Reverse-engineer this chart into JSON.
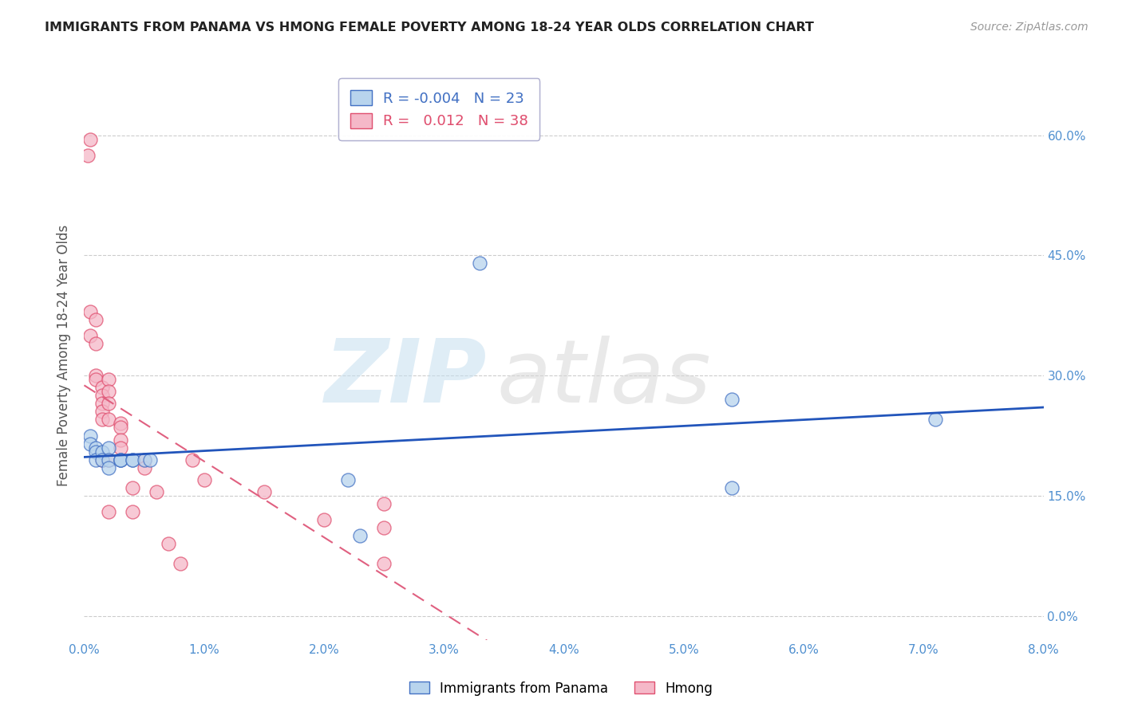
{
  "title": "IMMIGRANTS FROM PANAMA VS HMONG FEMALE POVERTY AMONG 18-24 YEAR OLDS CORRELATION CHART",
  "source": "Source: ZipAtlas.com",
  "ylabel": "Female Poverty Among 18-24 Year Olds",
  "xlim": [
    0.0,
    0.08
  ],
  "ylim": [
    -0.03,
    0.68
  ],
  "xticks": [
    0.0,
    0.01,
    0.02,
    0.03,
    0.04,
    0.05,
    0.06,
    0.07,
    0.08
  ],
  "xtick_labels": [
    "0.0%",
    "1.0%",
    "2.0%",
    "3.0%",
    "4.0%",
    "5.0%",
    "6.0%",
    "7.0%",
    "8.0%"
  ],
  "yticks": [
    0.0,
    0.15,
    0.3,
    0.45,
    0.6
  ],
  "ytick_labels": [
    "0.0%",
    "15.0%",
    "30.0%",
    "45.0%",
    "60.0%"
  ],
  "panama_face_color": "#b8d4ed",
  "panama_edge_color": "#4472c4",
  "hmong_face_color": "#f5b8c8",
  "hmong_edge_color": "#e05070",
  "panama_line_color": "#2255bb",
  "hmong_line_color": "#e06080",
  "legend_panama_R": "-0.004",
  "legend_panama_N": "23",
  "legend_hmong_R": "0.012",
  "legend_hmong_N": "38",
  "panama_x": [
    0.0005,
    0.0005,
    0.001,
    0.001,
    0.001,
    0.0015,
    0.0015,
    0.002,
    0.002,
    0.002,
    0.003,
    0.003,
    0.003,
    0.004,
    0.004,
    0.005,
    0.0055,
    0.022,
    0.033,
    0.054,
    0.054,
    0.071,
    0.023
  ],
  "panama_y": [
    0.225,
    0.215,
    0.21,
    0.205,
    0.195,
    0.205,
    0.195,
    0.21,
    0.195,
    0.185,
    0.195,
    0.195,
    0.195,
    0.195,
    0.195,
    0.195,
    0.195,
    0.17,
    0.44,
    0.27,
    0.16,
    0.245,
    0.1
  ],
  "hmong_x": [
    0.0003,
    0.0005,
    0.0005,
    0.0005,
    0.001,
    0.001,
    0.001,
    0.001,
    0.0015,
    0.0015,
    0.0015,
    0.0015,
    0.0015,
    0.0015,
    0.002,
    0.002,
    0.002,
    0.002,
    0.002,
    0.002,
    0.003,
    0.003,
    0.003,
    0.003,
    0.004,
    0.004,
    0.005,
    0.005,
    0.006,
    0.007,
    0.008,
    0.009,
    0.01,
    0.015,
    0.02,
    0.025,
    0.025,
    0.025
  ],
  "hmong_y": [
    0.575,
    0.595,
    0.38,
    0.35,
    0.34,
    0.3,
    0.295,
    0.37,
    0.285,
    0.275,
    0.265,
    0.255,
    0.245,
    0.195,
    0.295,
    0.28,
    0.265,
    0.245,
    0.195,
    0.13,
    0.24,
    0.235,
    0.22,
    0.21,
    0.16,
    0.13,
    0.195,
    0.185,
    0.155,
    0.09,
    0.065,
    0.195,
    0.17,
    0.155,
    0.12,
    0.065,
    0.11,
    0.14
  ],
  "background_color": "#ffffff",
  "grid_color": "#cccccc"
}
